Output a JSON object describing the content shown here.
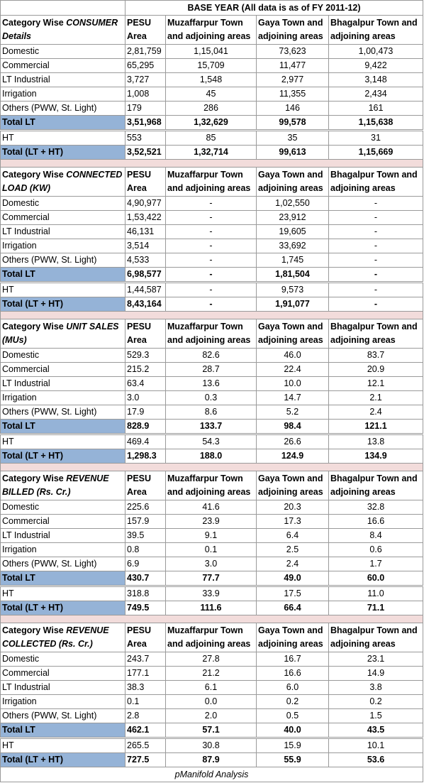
{
  "header": {
    "title": "BASE YEAR (All data is as of FY 2011-12)"
  },
  "columns": [
    "PESU Area",
    "Muzaffarpur Town and adjoining areas",
    "Gaya Town and adjoining areas",
    "Bhagalpur Town and adjoining areas"
  ],
  "sections": [
    {
      "title": [
        "Category Wise",
        "CONSUMER Details"
      ],
      "rows": [
        {
          "label": "Domestic",
          "values": [
            "2,81,759",
            "1,15,041",
            "73,623",
            "1,00,473"
          ]
        },
        {
          "label": "Commercial",
          "values": [
            "65,295",
            "15,709",
            "11,477",
            "9,422"
          ]
        },
        {
          "label": "LT Industrial",
          "values": [
            "3,727",
            "1,548",
            "2,977",
            "3,148"
          ]
        },
        {
          "label": "Irrigation",
          "values": [
            "1,008",
            "45",
            "11,355",
            "2,434"
          ]
        },
        {
          "label": "Others (PWW, St. Light)",
          "values": [
            "179",
            "286",
            "146",
            "161"
          ]
        },
        {
          "label": "Total LT",
          "values": [
            "3,51,968",
            "1,32,629",
            "99,578",
            "1,15,638"
          ]
        },
        {
          "label": "HT",
          "values": [
            "553",
            "85",
            "35",
            "31"
          ]
        },
        {
          "label": "Total (LT + HT)",
          "values": [
            "3,52,521",
            "1,32,714",
            "99,613",
            "1,15,669"
          ]
        }
      ]
    },
    {
      "title": [
        "Category Wise",
        "CONNECTED LOAD (KW)"
      ],
      "rows": [
        {
          "label": "Domestic",
          "values": [
            "4,90,977",
            "-",
            "1,02,550",
            "-"
          ]
        },
        {
          "label": "Commercial",
          "values": [
            "1,53,422",
            "-",
            "23,912",
            "-"
          ]
        },
        {
          "label": "LT Industrial",
          "values": [
            "46,131",
            "-",
            "19,605",
            "-"
          ]
        },
        {
          "label": "Irrigation",
          "values": [
            "3,514",
            "-",
            "33,692",
            "-"
          ]
        },
        {
          "label": "Others (PWW, St. Light)",
          "values": [
            "4,533",
            "-",
            "1,745",
            "-"
          ]
        },
        {
          "label": "Total LT",
          "values": [
            "6,98,577",
            "-",
            "1,81,504",
            "-"
          ]
        },
        {
          "label": "HT",
          "values": [
            "1,44,587",
            "-",
            "9,573",
            "-"
          ]
        },
        {
          "label": "Total (LT + HT)",
          "values": [
            "8,43,164",
            "-",
            "1,91,077",
            "-"
          ]
        }
      ]
    },
    {
      "title": [
        "Category Wise",
        "UNIT SALES (MUs)"
      ],
      "rows": [
        {
          "label": "Domestic",
          "values": [
            "529.3",
            "82.6",
            "46.0",
            "83.7"
          ]
        },
        {
          "label": "Commercial",
          "values": [
            "215.2",
            "28.7",
            "22.4",
            "20.9"
          ]
        },
        {
          "label": "LT Industrial",
          "values": [
            "63.4",
            "13.6",
            "10.0",
            "12.1"
          ]
        },
        {
          "label": "Irrigation",
          "values": [
            "3.0",
            "0.3",
            "14.7",
            "2.1"
          ]
        },
        {
          "label": "Others (PWW, St. Light)",
          "values": [
            "17.9",
            "8.6",
            "5.2",
            "2.4"
          ]
        },
        {
          "label": "Total LT",
          "values": [
            "828.9",
            "133.7",
            "98.4",
            "121.1"
          ]
        },
        {
          "label": "HT",
          "values": [
            "469.4",
            "54.3",
            "26.6",
            "13.8"
          ]
        },
        {
          "label": "Total (LT + HT)",
          "values": [
            "1,298.3",
            "188.0",
            "124.9",
            "134.9"
          ]
        }
      ]
    },
    {
      "title": [
        "Category Wise",
        "REVENUE BILLED (Rs. Cr.)"
      ],
      "rows": [
        {
          "label": "Domestic",
          "values": [
            "225.6",
            "41.6",
            "20.3",
            "32.8"
          ]
        },
        {
          "label": "Commercial",
          "values": [
            "157.9",
            "23.9",
            "17.3",
            "16.6"
          ]
        },
        {
          "label": "LT Industrial",
          "values": [
            "39.5",
            "9.1",
            "6.4",
            "8.4"
          ]
        },
        {
          "label": "Irrigation",
          "values": [
            "0.8",
            "0.1",
            "2.5",
            "0.6"
          ]
        },
        {
          "label": "Others (PWW, St. Light)",
          "values": [
            "6.9",
            "3.0",
            "2.4",
            "1.7"
          ]
        },
        {
          "label": "Total LT",
          "values": [
            "430.7",
            "77.7",
            "49.0",
            "60.0"
          ]
        },
        {
          "label": "HT",
          "values": [
            "318.8",
            "33.9",
            "17.5",
            "11.0"
          ]
        },
        {
          "label": "Total (LT + HT)",
          "values": [
            "749.5",
            "111.6",
            "66.4",
            "71.1"
          ]
        }
      ]
    },
    {
      "title": [
        "Category Wise",
        "REVENUE COLLECTED (Rs. Cr.)"
      ],
      "rows": [
        {
          "label": "Domestic",
          "values": [
            "243.7",
            "27.8",
            "16.7",
            "23.1"
          ]
        },
        {
          "label": "Commercial",
          "values": [
            "177.1",
            "21.2",
            "16.6",
            "14.9"
          ]
        },
        {
          "label": "LT Industrial",
          "values": [
            "38.3",
            "6.1",
            "6.0",
            "3.8"
          ]
        },
        {
          "label": "Irrigation",
          "values": [
            "0.1",
            "0.0",
            "0.2",
            "0.2"
          ]
        },
        {
          "label": "Others (PWW, St. Light)",
          "values": [
            "2.8",
            "2.0",
            "0.5",
            "1.5"
          ]
        },
        {
          "label": "Total LT",
          "values": [
            "462.1",
            "57.1",
            "40.0",
            "43.5"
          ]
        },
        {
          "label": "HT",
          "values": [
            "265.5",
            "30.8",
            "15.9",
            "10.1"
          ]
        },
        {
          "label": "Total (LT + HT)",
          "values": [
            "727.5",
            "87.9",
            "55.9",
            "53.6"
          ]
        }
      ]
    }
  ],
  "footer": "pManifold Analysis"
}
